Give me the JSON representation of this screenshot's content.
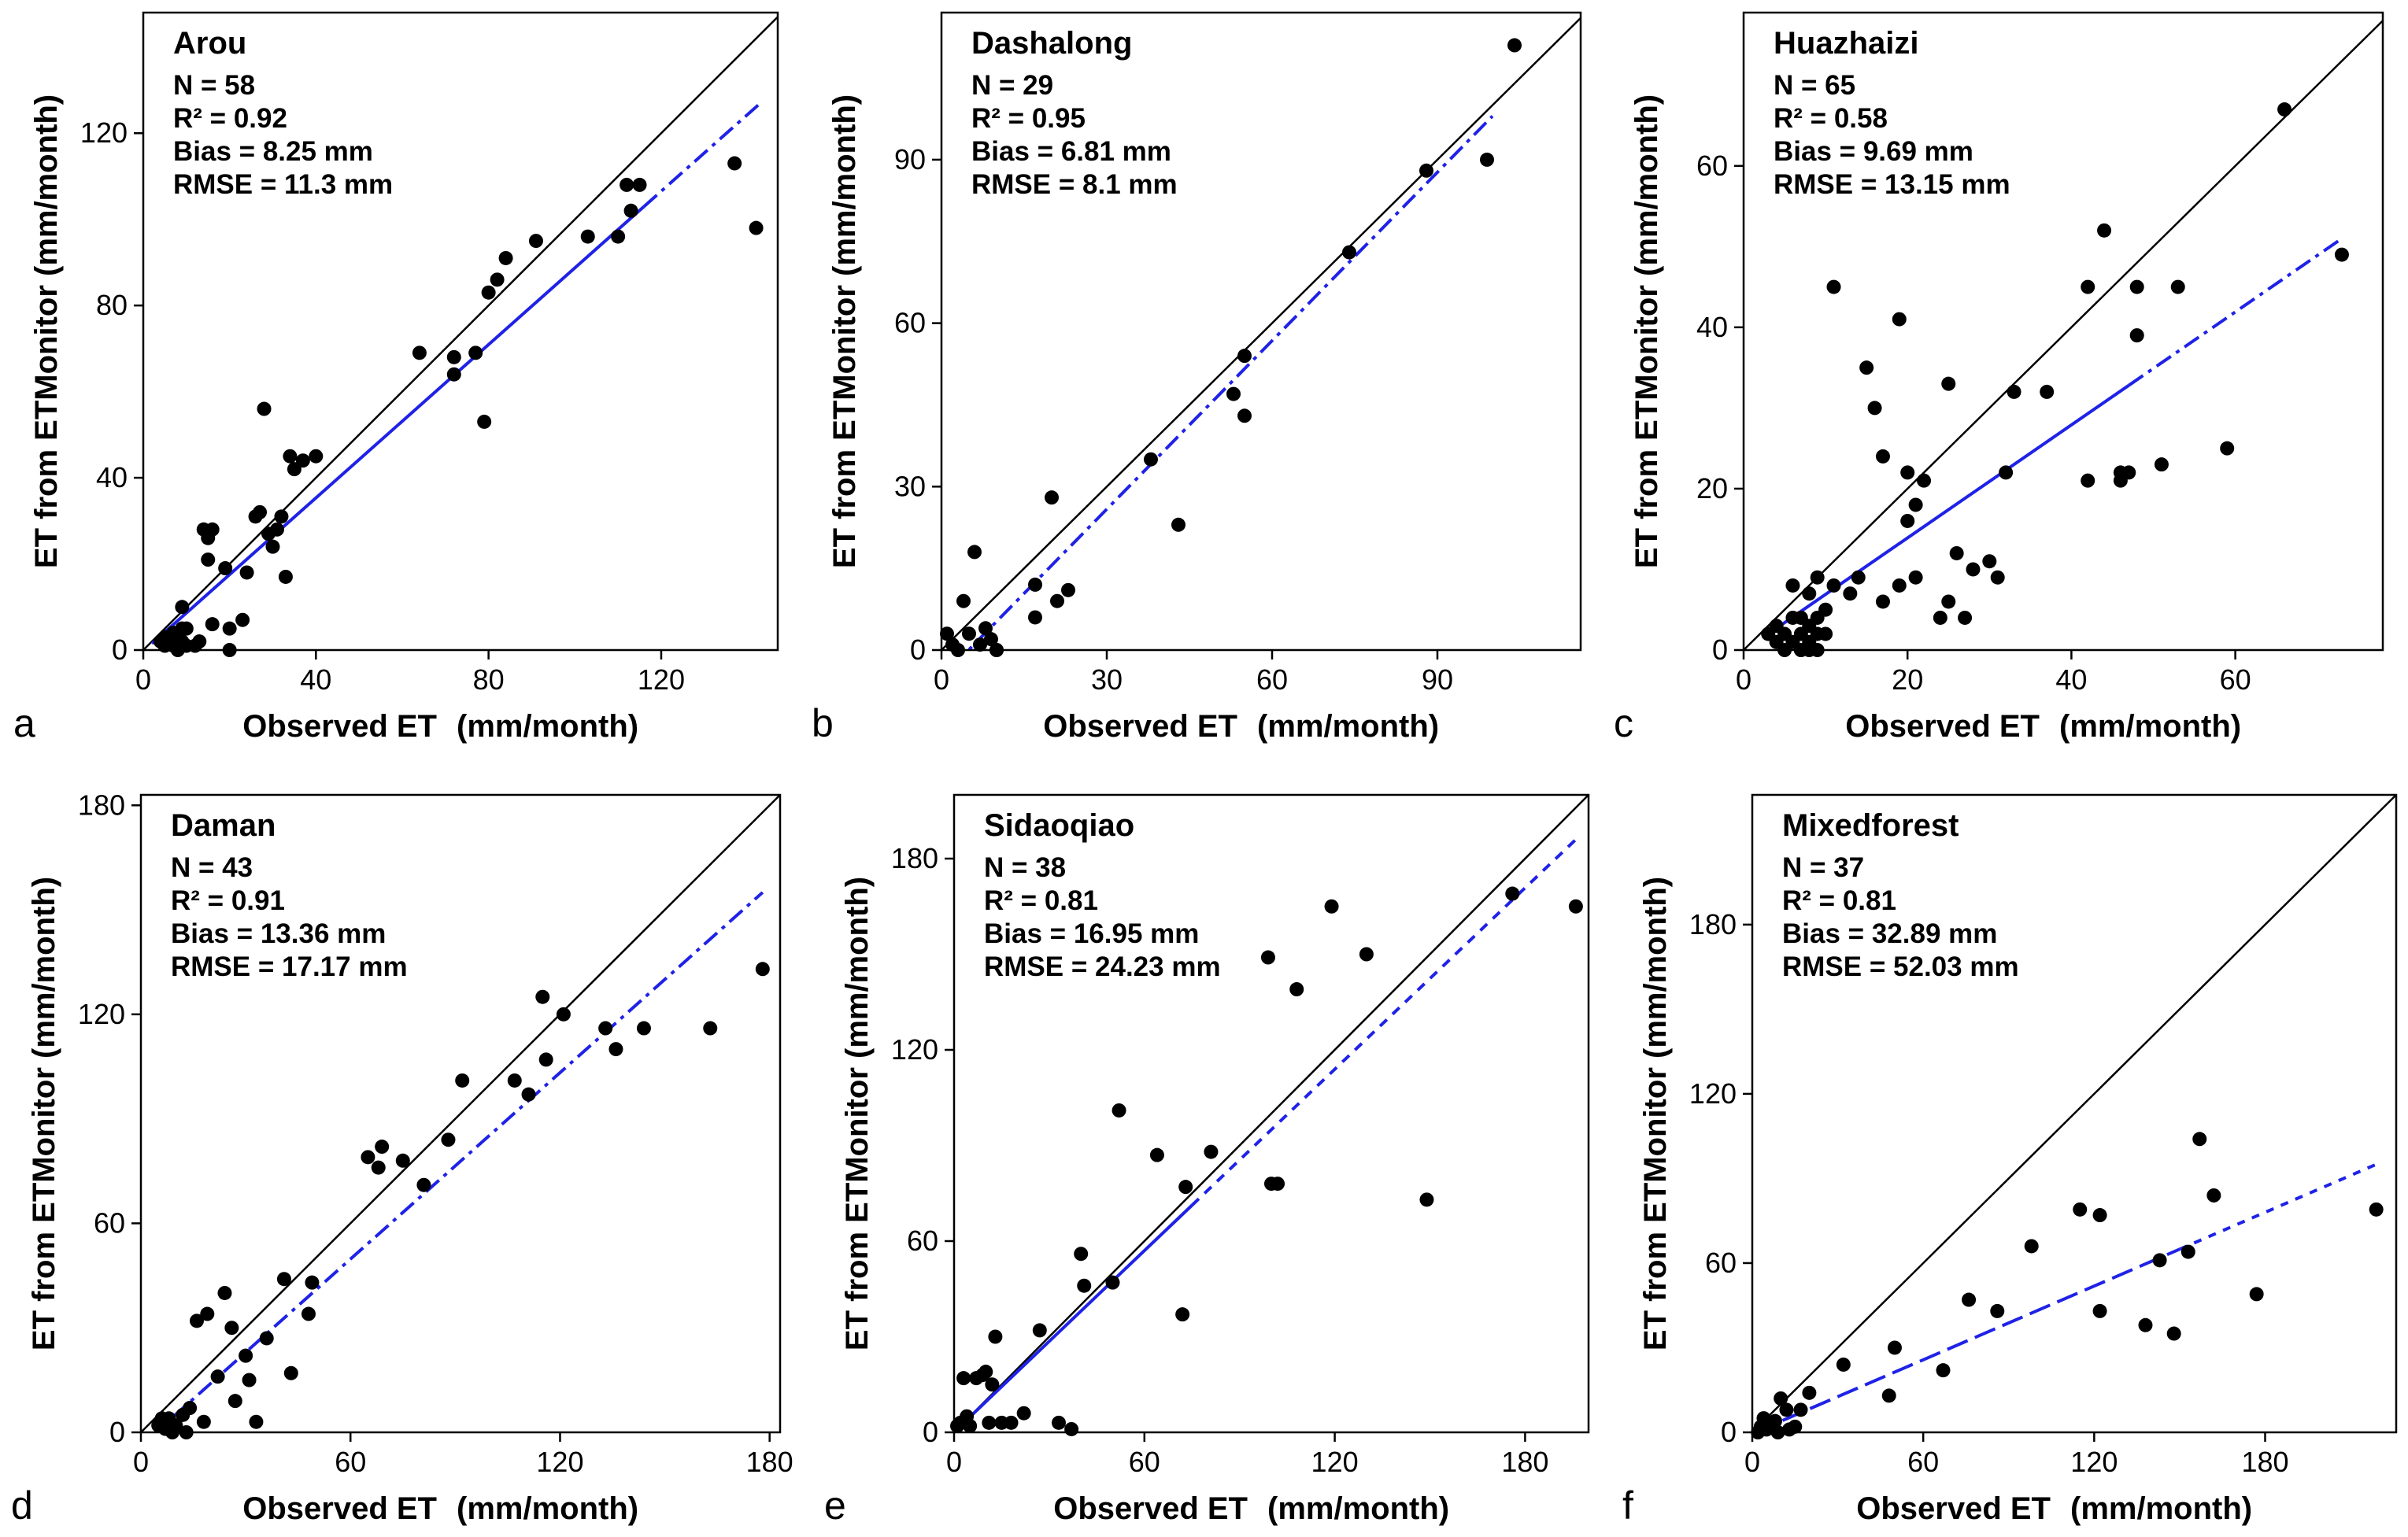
{
  "figure": {
    "colors": {
      "point": "#000000",
      "identity": "#000000",
      "fit": "#1f22e6",
      "frame": "#000000"
    }
  },
  "chart_data": [
    {
      "type": "scatter",
      "panel": "a",
      "title": "Arou",
      "stats": [
        "N = 58",
        "R² = 0.92",
        "Bias = 8.25 mm",
        "RMSE = 11.3 mm"
      ],
      "xlabel": "Observed ET",
      "xunit": "(mm/month)",
      "ylabel": "ET from ETMonitor (mm/month)",
      "xlim": [
        0,
        147
      ],
      "ylim": [
        0,
        148
      ],
      "xticks": [
        0,
        40,
        80,
        120
      ],
      "yticks": [
        0,
        40,
        80,
        120
      ],
      "fit": {
        "x0": 2,
        "x1": 143,
        "y0": 1.5,
        "y1": 127,
        "solid_until": 116,
        "style": "solid"
      },
      "points": [
        [
          4,
          2
        ],
        [
          5,
          3
        ],
        [
          5,
          1
        ],
        [
          6,
          2
        ],
        [
          7,
          4
        ],
        [
          7,
          1
        ],
        [
          8,
          3
        ],
        [
          8,
          0
        ],
        [
          9,
          2
        ],
        [
          9,
          5
        ],
        [
          9,
          10
        ],
        [
          10,
          5
        ],
        [
          10,
          1
        ],
        [
          12,
          1
        ],
        [
          13,
          2
        ],
        [
          14,
          28
        ],
        [
          15,
          26
        ],
        [
          15,
          21
        ],
        [
          16,
          28
        ],
        [
          16,
          6
        ],
        [
          19,
          19
        ],
        [
          20,
          5
        ],
        [
          20,
          0
        ],
        [
          23,
          7
        ],
        [
          24,
          18
        ],
        [
          26,
          31
        ],
        [
          27,
          32
        ],
        [
          28,
          56
        ],
        [
          29,
          27
        ],
        [
          30,
          24
        ],
        [
          31,
          28
        ],
        [
          32,
          31
        ],
        [
          33,
          17
        ],
        [
          34,
          45
        ],
        [
          35,
          42
        ],
        [
          37,
          44
        ],
        [
          40,
          45
        ],
        [
          64,
          69
        ],
        [
          72,
          64
        ],
        [
          72,
          68
        ],
        [
          77,
          69
        ],
        [
          79,
          53
        ],
        [
          80,
          83
        ],
        [
          82,
          86
        ],
        [
          84,
          91
        ],
        [
          91,
          95
        ],
        [
          103,
          96
        ],
        [
          110,
          96
        ],
        [
          112,
          108
        ],
        [
          113,
          102
        ],
        [
          115,
          108
        ],
        [
          137,
          113
        ],
        [
          142,
          98
        ]
      ]
    },
    {
      "type": "scatter",
      "panel": "b",
      "title": "Dashalong",
      "stats": [
        "N = 29",
        "R² = 0.95",
        "Bias = 6.81 mm",
        "RMSE = 8.1 mm"
      ],
      "xlabel": "Observed ET",
      "xunit": "(mm/month)",
      "ylabel": "ET from ETMonitor (mm/month)",
      "xlim": [
        0,
        116
      ],
      "ylim": [
        0,
        117
      ],
      "xticks": [
        0,
        30,
        60,
        90
      ],
      "yticks": [
        0,
        30,
        60,
        90
      ],
      "fit": {
        "x0": 2,
        "x1": 100,
        "y0": -3,
        "y1": 98,
        "style": "dashdot"
      },
      "points": [
        [
          1,
          3
        ],
        [
          2,
          1
        ],
        [
          3,
          0
        ],
        [
          4,
          9
        ],
        [
          5,
          3
        ],
        [
          6,
          18
        ],
        [
          7,
          1
        ],
        [
          8,
          4
        ],
        [
          9,
          2
        ],
        [
          10,
          0
        ],
        [
          10,
          0
        ],
        [
          17,
          12
        ],
        [
          17,
          6
        ],
        [
          20,
          28
        ],
        [
          21,
          9
        ],
        [
          23,
          11
        ],
        [
          38,
          35
        ],
        [
          43,
          23
        ],
        [
          53,
          47
        ],
        [
          55,
          43
        ],
        [
          55,
          54
        ],
        [
          74,
          73
        ],
        [
          88,
          88
        ],
        [
          99,
          90
        ],
        [
          104,
          111
        ]
      ]
    },
    {
      "type": "scatter",
      "panel": "c",
      "title": "Huazhaizi",
      "stats": [
        "N = 65",
        "R² = 0.58",
        "Bias = 9.69 mm",
        "RMSE = 13.15 mm"
      ],
      "xlabel": "Observed ET",
      "xunit": "(mm/month)",
      "ylabel": "ET from ETMonitor (mm/month)",
      "xlim": [
        0,
        78
      ],
      "ylim": [
        0,
        79
      ],
      "xticks": [
        0,
        20,
        40,
        60
      ],
      "yticks": [
        0,
        20,
        40,
        60
      ],
      "fit": {
        "x0": 3,
        "x1": 73,
        "y0": 2,
        "y1": 51,
        "solid_until": 47,
        "style": "solid"
      },
      "points": [
        [
          3,
          2
        ],
        [
          4,
          1
        ],
        [
          4,
          3
        ],
        [
          5,
          0
        ],
        [
          5,
          2
        ],
        [
          6,
          4
        ],
        [
          6,
          8
        ],
        [
          6,
          1
        ],
        [
          7,
          2
        ],
        [
          7,
          4
        ],
        [
          7,
          0
        ],
        [
          7,
          0
        ],
        [
          8,
          3
        ],
        [
          8,
          7
        ],
        [
          8,
          1
        ],
        [
          8,
          0
        ],
        [
          9,
          4
        ],
        [
          9,
          2
        ],
        [
          9,
          0
        ],
        [
          9,
          9
        ],
        [
          10,
          5
        ],
        [
          10,
          2
        ],
        [
          11,
          8
        ],
        [
          11,
          45
        ],
        [
          13,
          7
        ],
        [
          14,
          9
        ],
        [
          15,
          35
        ],
        [
          16,
          30
        ],
        [
          17,
          6
        ],
        [
          17,
          24
        ],
        [
          19,
          41
        ],
        [
          19,
          8
        ],
        [
          20,
          22
        ],
        [
          20,
          16
        ],
        [
          21,
          9
        ],
        [
          21,
          18
        ],
        [
          22,
          21
        ],
        [
          24,
          4
        ],
        [
          25,
          33
        ],
        [
          25,
          6
        ],
        [
          26,
          12
        ],
        [
          27,
          4
        ],
        [
          28,
          10
        ],
        [
          30,
          11
        ],
        [
          31,
          9
        ],
        [
          32,
          22
        ],
        [
          33,
          32
        ],
        [
          37,
          32
        ],
        [
          42,
          45
        ],
        [
          42,
          21
        ],
        [
          44,
          52
        ],
        [
          46,
          22
        ],
        [
          46,
          21
        ],
        [
          47,
          22
        ],
        [
          48,
          39
        ],
        [
          48,
          45
        ],
        [
          51,
          23
        ],
        [
          53,
          45
        ],
        [
          59,
          25
        ],
        [
          66,
          67
        ],
        [
          73,
          49
        ]
      ]
    },
    {
      "type": "scatter",
      "panel": "d",
      "title": "Daman",
      "stats": [
        "N = 43",
        "R² = 0.91",
        "Bias = 13.36 mm",
        "RMSE = 17.17 mm"
      ],
      "xlabel": "Observed ET",
      "xunit": "(mm/month)",
      "ylabel": "ET from ETMonitor (mm/month)",
      "xlim": [
        0,
        183
      ],
      "ylim": [
        0,
        183
      ],
      "xticks": [
        0,
        60,
        120,
        180
      ],
      "yticks": [
        0,
        60,
        120,
        180
      ],
      "fit": {
        "x0": 2,
        "x1": 178,
        "y0": -2,
        "y1": 155,
        "style": "dashdot"
      },
      "points": [
        [
          5,
          2
        ],
        [
          6,
          4
        ],
        [
          7,
          1
        ],
        [
          8,
          4
        ],
        [
          9,
          0
        ],
        [
          10,
          2
        ],
        [
          12,
          5
        ],
        [
          13,
          0
        ],
        [
          14,
          7
        ],
        [
          16,
          32
        ],
        [
          18,
          3
        ],
        [
          19,
          34
        ],
        [
          22,
          16
        ],
        [
          24,
          40
        ],
        [
          26,
          30
        ],
        [
          27,
          9
        ],
        [
          30,
          22
        ],
        [
          31,
          15
        ],
        [
          33,
          3
        ],
        [
          36,
          27
        ],
        [
          41,
          44
        ],
        [
          43,
          17
        ],
        [
          48,
          34
        ],
        [
          49,
          43
        ],
        [
          65,
          79
        ],
        [
          68,
          76
        ],
        [
          69,
          82
        ],
        [
          75,
          78
        ],
        [
          81,
          71
        ],
        [
          88,
          84
        ],
        [
          92,
          101
        ],
        [
          107,
          101
        ],
        [
          111,
          97
        ],
        [
          115,
          125
        ],
        [
          116,
          107
        ],
        [
          121,
          120
        ],
        [
          133,
          116
        ],
        [
          136,
          110
        ],
        [
          144,
          116
        ],
        [
          163,
          116
        ],
        [
          178,
          133
        ]
      ]
    },
    {
      "type": "scatter",
      "panel": "e",
      "title": "Sidaoqiao",
      "stats": [
        "N = 38",
        "R² = 0.81",
        "Bias = 16.95 mm",
        "RMSE = 24.23 mm"
      ],
      "xlabel": "Observed ET",
      "xunit": "(mm/month)",
      "ylabel": "ET from ETMonitor (mm/month)",
      "xlim": [
        0,
        200
      ],
      "ylim": [
        0,
        200
      ],
      "xticks": [
        0,
        60,
        120,
        180
      ],
      "yticks": [
        0,
        60,
        120,
        180
      ],
      "fit": {
        "x0": 2,
        "x1": 196,
        "y0": 2,
        "y1": 186,
        "solid_until": 75,
        "style": "dashed"
      },
      "points": [
        [
          1,
          2
        ],
        [
          2,
          3
        ],
        [
          3,
          17
        ],
        [
          4,
          5
        ],
        [
          5,
          2
        ],
        [
          7,
          17
        ],
        [
          9,
          18
        ],
        [
          10,
          19
        ],
        [
          11,
          3
        ],
        [
          12,
          15
        ],
        [
          13,
          30
        ],
        [
          15,
          3
        ],
        [
          18,
          3
        ],
        [
          22,
          6
        ],
        [
          27,
          32
        ],
        [
          33,
          3
        ],
        [
          37,
          1
        ],
        [
          40,
          56
        ],
        [
          41,
          46
        ],
        [
          50,
          47
        ],
        [
          52,
          101
        ],
        [
          64,
          87
        ],
        [
          72,
          37
        ],
        [
          73,
          77
        ],
        [
          81,
          88
        ],
        [
          99,
          149
        ],
        [
          100,
          78
        ],
        [
          102,
          78
        ],
        [
          108,
          139
        ],
        [
          119,
          165
        ],
        [
          130,
          150
        ],
        [
          149,
          73
        ],
        [
          176,
          169
        ],
        [
          196,
          165
        ]
      ]
    },
    {
      "type": "scatter",
      "panel": "f",
      "title": "Mixedforest",
      "stats": [
        "N = 37",
        "R² = 0.81",
        "Bias = 32.89 mm",
        "RMSE = 52.03 mm"
      ],
      "xlabel": "Observed ET",
      "xunit": "(mm/month)",
      "ylabel": "ET from ETMonitor (mm/month)",
      "xlim": [
        0,
        226
      ],
      "ylim": [
        0,
        226
      ],
      "xticks": [
        0,
        60,
        120,
        180
      ],
      "yticks": [
        0,
        60,
        120,
        180
      ],
      "fit": {
        "x0": 1,
        "x1": 219,
        "y0": 0,
        "y1": 95,
        "dash_until": 150,
        "style": "dashed"
      },
      "points": [
        [
          2,
          0
        ],
        [
          3,
          2
        ],
        [
          4,
          5
        ],
        [
          5,
          1
        ],
        [
          6,
          3
        ],
        [
          8,
          4
        ],
        [
          9,
          0
        ],
        [
          10,
          12
        ],
        [
          12,
          8
        ],
        [
          13,
          1
        ],
        [
          15,
          2
        ],
        [
          17,
          8
        ],
        [
          20,
          14
        ],
        [
          32,
          24
        ],
        [
          48,
          13
        ],
        [
          50,
          30
        ],
        [
          67,
          22
        ],
        [
          76,
          47
        ],
        [
          86,
          43
        ],
        [
          98,
          66
        ],
        [
          115,
          79
        ],
        [
          122,
          43
        ],
        [
          122,
          77
        ],
        [
          138,
          38
        ],
        [
          143,
          61
        ],
        [
          148,
          35
        ],
        [
          153,
          64
        ],
        [
          157,
          104
        ],
        [
          162,
          84
        ],
        [
          177,
          49
        ],
        [
          219,
          79
        ]
      ]
    }
  ],
  "panel_letters": [
    "a",
    "b",
    "c",
    "d",
    "e",
    "f"
  ]
}
